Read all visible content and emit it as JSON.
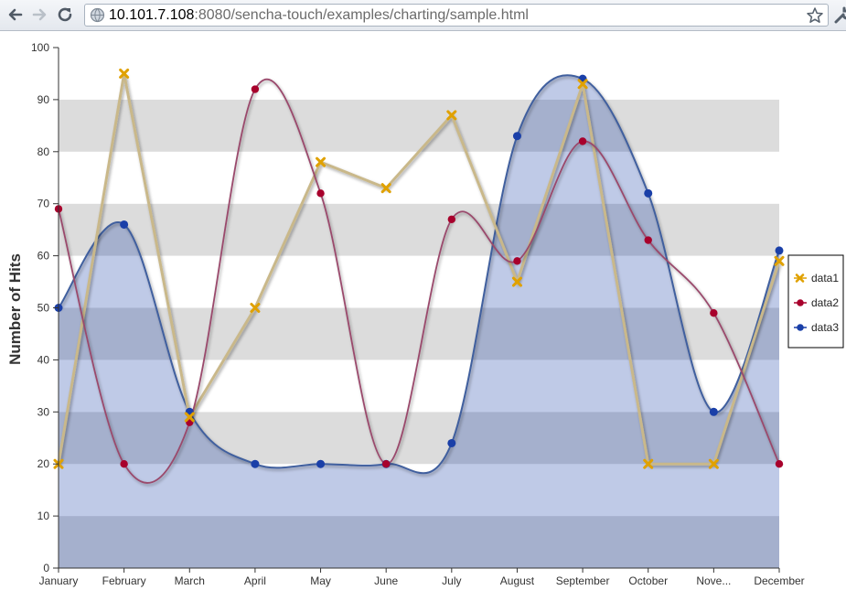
{
  "browser": {
    "url_host": "10.101.7.108",
    "url_rest": ":8080/sencha-touch/examples/charting/sample.html"
  },
  "chart_data": {
    "type": "area",
    "categories": [
      "January",
      "February",
      "March",
      "April",
      "May",
      "June",
      "July",
      "August",
      "September",
      "October",
      "November",
      "December"
    ],
    "category_labels": [
      "January",
      "February",
      "March",
      "April",
      "May",
      "June",
      "July",
      "August",
      "September",
      "October",
      "Nove...",
      "December"
    ],
    "ylabel": "Number of Hits",
    "ylim": [
      0,
      100
    ],
    "yticks": [
      0,
      10,
      20,
      30,
      40,
      50,
      60,
      70,
      80,
      90,
      100
    ],
    "legend_position": "right",
    "series": [
      {
        "name": "data1",
        "type": "line",
        "marker": "cross",
        "color": "#e0a100",
        "values": [
          20,
          95,
          29,
          50,
          78,
          73,
          87,
          55,
          93,
          20,
          20,
          59
        ]
      },
      {
        "name": "data2",
        "type": "smooth-line",
        "marker": "circle",
        "color": "#a8002c",
        "values": [
          69,
          20,
          28,
          92,
          72,
          20,
          67,
          59,
          82,
          63,
          49,
          20
        ]
      },
      {
        "name": "data3",
        "type": "smooth-area",
        "marker": "circle",
        "color": "#1a3fa8",
        "values": [
          50,
          66,
          30,
          20,
          20,
          20,
          24,
          83,
          94,
          72,
          30,
          61
        ]
      }
    ]
  }
}
